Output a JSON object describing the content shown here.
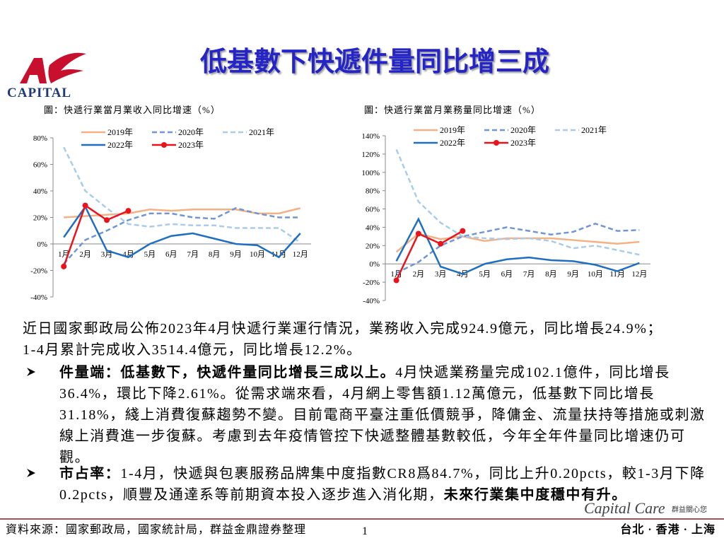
{
  "header": {
    "title": "低基數下快遞件量同比增三成",
    "logo": "CAPITAL"
  },
  "chart_data": [
    {
      "type": "line",
      "title": "圖：快遞行業當月業收入同比增速（%）",
      "categories": [
        "1月",
        "2月",
        "3月",
        "4月",
        "5月",
        "6月",
        "7月",
        "8月",
        "9月",
        "10月",
        "11月",
        "12月"
      ],
      "ylim": [
        -40,
        80
      ],
      "yticks": [
        {
          "value": -40,
          "label": "-40%"
        },
        {
          "value": -20,
          "label": "-20%"
        },
        {
          "value": 0,
          "label": "0%"
        },
        {
          "value": 20,
          "label": "20%"
        },
        {
          "value": 40,
          "label": "40%"
        },
        {
          "value": 60,
          "label": "60%"
        },
        {
          "value": 80,
          "label": "80%"
        }
      ],
      "series": [
        {
          "name": "2019年",
          "color": "#f4b183",
          "dash": false,
          "values": [
            20,
            21,
            22,
            23,
            26,
            25,
            26,
            26,
            26,
            23,
            23,
            27
          ]
        },
        {
          "name": "2020年",
          "color": "#6f97d6",
          "dash": true,
          "values": [
            -15,
            3,
            10,
            18,
            23,
            23,
            20,
            19,
            27,
            23,
            20,
            20
          ]
        },
        {
          "name": "2021年",
          "color": "#a9cde9",
          "dash": true,
          "values": [
            73,
            40,
            27,
            15,
            13,
            15,
            14,
            14,
            12,
            12,
            12,
            1
          ]
        },
        {
          "name": "2022年",
          "color": "#1f6fc0",
          "dash": false,
          "values": [
            5,
            28,
            -5,
            -10,
            0,
            6,
            8,
            4,
            0,
            -1,
            -10,
            8
          ]
        },
        {
          "name": "2023年",
          "color": "#e8131b",
          "dash": false,
          "marker": true,
          "values": [
            -17,
            29,
            18,
            25,
            null,
            null,
            null,
            null,
            null,
            null,
            null,
            null
          ]
        }
      ]
    },
    {
      "type": "line",
      "title": "圖：快遞行業當月業務量同比增速（%）",
      "categories": [
        "1月",
        "2月",
        "3月",
        "4月",
        "5月",
        "6月",
        "7月",
        "8月",
        "9月",
        "10月",
        "11月",
        "12月"
      ],
      "ylim": [
        -40,
        140
      ],
      "yticks": [
        {
          "value": -40,
          "label": "-40%"
        },
        {
          "value": -20,
          "label": "-20%"
        },
        {
          "value": 0,
          "label": "0%"
        },
        {
          "value": 20,
          "label": "20%"
        },
        {
          "value": 40,
          "label": "40%"
        },
        {
          "value": 60,
          "label": "60%"
        },
        {
          "value": 80,
          "label": "80%"
        },
        {
          "value": 100,
          "label": "100%"
        },
        {
          "value": 120,
          "label": "120%"
        },
        {
          "value": 140,
          "label": "140%"
        }
      ],
      "series": [
        {
          "name": "2019年",
          "color": "#f4b183",
          "dash": false,
          "values": [
            13,
            33,
            27,
            30,
            25,
            28,
            28,
            28,
            26,
            24,
            22,
            24
          ]
        },
        {
          "name": "2020年",
          "color": "#6f97d6",
          "dash": true,
          "values": [
            -10,
            2,
            20,
            30,
            35,
            40,
            36,
            32,
            35,
            44,
            36,
            37
          ]
        },
        {
          "name": "2021年",
          "color": "#a9cde9",
          "dash": true,
          "values": [
            125,
            68,
            45,
            30,
            28,
            27,
            28,
            25,
            17,
            20,
            15,
            10
          ]
        },
        {
          "name": "2022年",
          "color": "#1f6fc0",
          "dash": false,
          "values": [
            3,
            49,
            -3,
            -11,
            0,
            5,
            7,
            4,
            3,
            -1,
            -8,
            1
          ]
        },
        {
          "name": "2023年",
          "color": "#e8131b",
          "dash": false,
          "marker": true,
          "values": [
            -18,
            33,
            22,
            36,
            null,
            null,
            null,
            null,
            null,
            null,
            null,
            null
          ]
        }
      ]
    }
  ],
  "body": {
    "intro": [
      "近日國家郵政局公佈2023年4月快遞行業運行情況，業務收入完成924.9億元，同比增長24.9%；",
      "1-4月累計完成收入3514.4億元，同比增長12.2%。"
    ],
    "bullets": [
      {
        "bold": "件量端：低基數下，快遞件量同比增長三成以上。",
        "text": "4月快遞業務量完成102.1億件，同比增長36.4%，環比下降2.61%。從需求端來看，4月網上零售額1.12萬億元，低基數下同比增長31.18%，綫上消費復蘇趨勢不變。目前電商平臺注重低價競爭，降傭金、流量扶持等措施或刺激線上消費進一步復蘇。考慮到去年疫情管控下快遞整體基數較低，今年全年件量同比增速仍可觀。"
      },
      {
        "bold": "市占率：",
        "text": "1-4月，快遞與包裹服務品牌集中度指數CR8爲84.7%，同比上升0.20pcts，較1-3月下降0.2pcts，順豐及通達系等前期資本投入逐步進入消化期，",
        "bold2": "未來行業集中度穩中有升。"
      }
    ]
  },
  "footer": {
    "source": "資料來源：國家郵政局，國家統計局，群益金鼎證券整理",
    "page": "1",
    "cities": "台北 · 香港 · 上海",
    "brand": "Capital Care",
    "slogan": "群益關心您"
  }
}
